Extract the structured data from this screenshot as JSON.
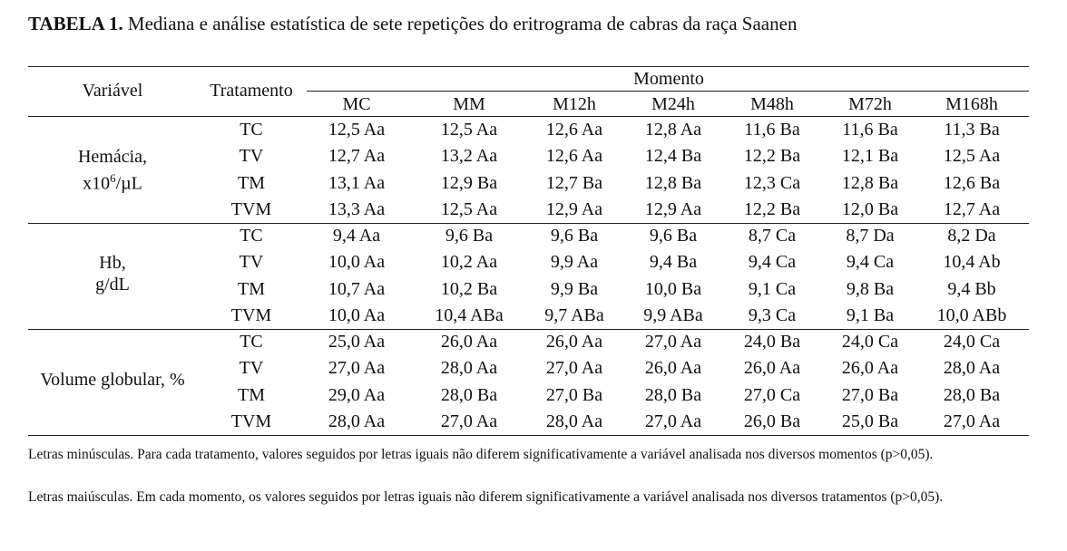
{
  "title": {
    "label": "TABELA 1.",
    "text": "Mediana e análise estatística de sete repetições do eritrograma de cabras da raça Saanen"
  },
  "header": {
    "variavel": "Variável",
    "tratamento": "Tratamento",
    "momento": "Momento",
    "moments": [
      "MC",
      "MM",
      "M12h",
      "M24h",
      "M48h",
      "M72h",
      "M168h"
    ]
  },
  "groups": [
    {
      "variable_line1": "Hemácia,",
      "variable_line2_prefix": "x10",
      "variable_line2_sup": "6",
      "variable_line2_suffix": "/µL",
      "rows": [
        {
          "treatment": "TC",
          "values": [
            "12,5 Aa",
            "12,5 Aa",
            "12,6 Aa",
            "12,8 Aa",
            "11,6 Ba",
            "11,6 Ba",
            "11,3 Ba"
          ]
        },
        {
          "treatment": "TV",
          "values": [
            "12,7 Aa",
            "13,2 Aa",
            "12,6 Aa",
            "12,4 Ba",
            "12,2 Ba",
            "12,1 Ba",
            "12,5 Aa"
          ]
        },
        {
          "treatment": "TM",
          "values": [
            "13,1 Aa",
            "12,9 Ba",
            "12,7 Ba",
            "12,8 Ba",
            "12,3 Ca",
            "12,8 Ba",
            "12,6 Ba"
          ]
        },
        {
          "treatment": "TVM",
          "values": [
            "13,3 Aa",
            "12,5 Aa",
            "12,9 Aa",
            "12,9 Aa",
            "12,2 Ba",
            "12,0 Ba",
            "12,7 Aa"
          ]
        }
      ]
    },
    {
      "variable_line1": "Hb,",
      "variable_line2": "g/dL",
      "rows": [
        {
          "treatment": "TC",
          "values": [
            "9,4 Aa",
            "9,6 Ba",
            "9,6 Ba",
            "9,6 Ba",
            "8,7 Ca",
            "8,7 Da",
            "8,2 Da"
          ]
        },
        {
          "treatment": "TV",
          "values": [
            "10,0 Aa",
            "10,2 Aa",
            "9,9 Aa",
            "9,4 Ba",
            "9,4 Ca",
            "9,4 Ca",
            "10,4 Ab"
          ]
        },
        {
          "treatment": "TM",
          "values": [
            "10,7 Aa",
            "10,2 Ba",
            "9,9 Ba",
            "10,0 Ba",
            "9,1 Ca",
            "9,8 Ba",
            "9,4 Bb"
          ]
        },
        {
          "treatment": "TVM",
          "values": [
            "10,0 Aa",
            "10,4 ABa",
            "9,7 ABa",
            "9,9 ABa",
            "9,3 Ca",
            "9,1 Ba",
            "10,0 ABb"
          ]
        }
      ]
    },
    {
      "variable_line1": "Volume globular, %",
      "rows": [
        {
          "treatment": "TC",
          "values": [
            "25,0 Aa",
            "26,0 Aa",
            "26,0 Aa",
            "27,0 Aa",
            "24,0 Ba",
            "24,0 Ca",
            "24,0 Ca"
          ]
        },
        {
          "treatment": "TV",
          "values": [
            "27,0 Aa",
            "28,0 Aa",
            "27,0 Aa",
            "26,0 Aa",
            "26,0 Aa",
            "26,0 Aa",
            "28,0 Aa"
          ]
        },
        {
          "treatment": "TM",
          "values": [
            "29,0 Aa",
            "28,0 Ba",
            "27,0 Ba",
            "28,0 Ba",
            "27,0 Ca",
            "27,0 Ba",
            "28,0 Ba"
          ]
        },
        {
          "treatment": "TVM",
          "values": [
            "28,0 Aa",
            "27,0 Aa",
            "28,0 Aa",
            "27,0 Aa",
            "26,0 Ba",
            "25,0 Ba",
            "27,0 Aa"
          ]
        }
      ]
    }
  ],
  "notes": [
    "Letras minúsculas. Para cada tratamento, valores seguidos por letras iguais não diferem significativamente a variável analisada nos diversos momentos (p>0,05).",
    "Letras maiúsculas. Em cada momento, os valores seguidos por letras iguais não diferem significativamente a variável analisada nos diversos tratamentos (p>0,05)."
  ]
}
